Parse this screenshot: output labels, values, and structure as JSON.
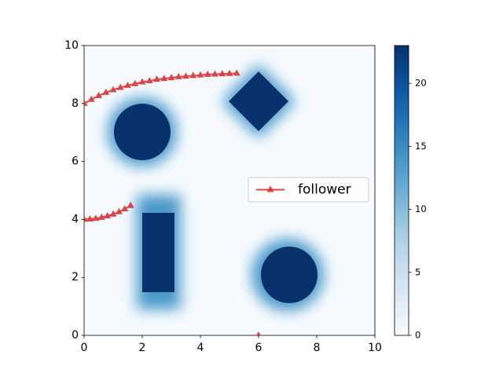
{
  "chart_data": {
    "type": "line",
    "x": [
      0,
      0.25,
      0.5,
      0.75,
      1,
      1.25,
      1.5,
      1.75,
      2,
      2.25,
      2.5,
      2.75,
      3,
      3.25,
      3.5,
      3.75,
      4,
      4.25,
      4.5,
      4.75,
      5,
      5.25,
      null,
      0,
      0.2,
      0.4,
      0.6,
      0.8,
      1,
      1.2,
      1.4,
      1.6,
      null,
      6
    ],
    "series": [
      {
        "name": "follower",
        "color": "#d62728",
        "values": [
          8.0,
          8.14,
          8.27,
          8.38,
          8.47,
          8.55,
          8.62,
          8.68,
          8.74,
          8.78,
          8.83,
          8.86,
          8.89,
          8.92,
          8.94,
          8.96,
          8.98,
          9.0,
          9.01,
          9.02,
          9.03,
          9.04,
          null,
          4.0,
          4.01,
          4.03,
          4.07,
          4.12,
          4.18,
          4.26,
          4.36,
          4.48,
          null,
          0
        ]
      }
    ],
    "xlim": [
      0,
      10
    ],
    "ylim": [
      0,
      10
    ],
    "xticks": [
      0,
      2,
      4,
      6,
      8,
      10
    ],
    "yticks": [
      0,
      2,
      4,
      6,
      8,
      10
    ],
    "legend": "center right",
    "colorbar": {
      "lim": [
        0,
        23
      ],
      "ticks": [
        0,
        5,
        10,
        15,
        20
      ]
    }
  }
}
